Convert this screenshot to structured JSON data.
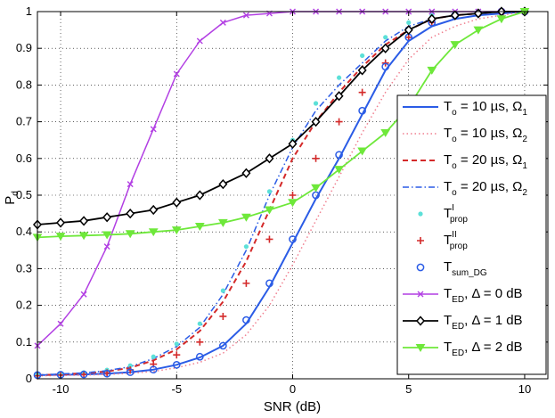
{
  "chart_data": {
    "type": "line",
    "title": "",
    "xlabel": "SNR (dB)",
    "ylabel_main": "P",
    "ylabel_sub": "d",
    "xlim": [
      -11,
      11
    ],
    "ylim": [
      0,
      1
    ],
    "xticks": [
      -10,
      -5,
      0,
      5,
      10
    ],
    "yticks": [
      0,
      0.1,
      0.2,
      0.3,
      0.4,
      0.5,
      0.6,
      0.7,
      0.8,
      0.9,
      1
    ],
    "grid": true,
    "legend_position": "right",
    "series": [
      {
        "name": "T_o = 10 µs, Ω_1",
        "legend": {
          "main": "T",
          "sub": "o",
          "text": " = 10 µs,  Ω",
          "sub2": "1"
        },
        "color": "#2b5ce6",
        "style": "solid",
        "marker": "none",
        "width": 2,
        "x": [
          -11,
          -10,
          -9,
          -8,
          -7,
          -6,
          -5,
          -4,
          -3,
          -2,
          -1,
          0,
          1,
          2,
          3,
          4,
          5,
          6,
          7,
          8,
          9,
          10
        ],
        "y": [
          0.01,
          0.011,
          0.012,
          0.014,
          0.018,
          0.025,
          0.038,
          0.058,
          0.09,
          0.15,
          0.25,
          0.37,
          0.49,
          0.6,
          0.72,
          0.84,
          0.92,
          0.96,
          0.98,
          0.99,
          0.995,
          1.0
        ]
      },
      {
        "name": "T_o = 10 µs, Ω_2",
        "legend": {
          "main": "T",
          "sub": "o",
          "text": " = 10 µs,  Ω",
          "sub2": "2"
        },
        "color": "#f07f8f",
        "style": "dotted",
        "marker": "none",
        "width": 1.5,
        "x": [
          -11,
          -10,
          -9,
          -8,
          -7,
          -6,
          -5,
          -4,
          -3,
          -2,
          -1,
          0,
          1,
          2,
          3,
          4,
          5,
          6,
          7,
          8,
          9,
          10
        ],
        "y": [
          0.008,
          0.009,
          0.01,
          0.012,
          0.015,
          0.02,
          0.03,
          0.045,
          0.07,
          0.12,
          0.2,
          0.31,
          0.43,
          0.55,
          0.67,
          0.78,
          0.87,
          0.93,
          0.96,
          0.98,
          0.99,
          1.0
        ]
      },
      {
        "name": "T_o = 20 µs, Ω_1",
        "legend": {
          "main": "T",
          "sub": "o",
          "text": " = 20 µs,  Ω",
          "sub2": "1"
        },
        "color": "#d42a2a",
        "style": "dashed",
        "marker": "none",
        "width": 2,
        "x": [
          -11,
          -10,
          -9,
          -8,
          -7,
          -6,
          -5,
          -4,
          -3,
          -2,
          -1,
          0,
          1,
          2,
          3,
          4,
          5,
          6,
          7,
          8,
          9,
          10
        ],
        "y": [
          0.01,
          0.012,
          0.015,
          0.02,
          0.03,
          0.05,
          0.08,
          0.13,
          0.21,
          0.32,
          0.46,
          0.6,
          0.7,
          0.78,
          0.85,
          0.91,
          0.95,
          0.98,
          0.99,
          0.995,
          1.0,
          1.0
        ]
      },
      {
        "name": "T_o = 20 µs, Ω_2",
        "legend": {
          "main": "T",
          "sub": "o",
          "text": " = 20 µs,  Ω",
          "sub2": "2"
        },
        "color": "#2b5ce6",
        "style": "dashdot",
        "marker": "none",
        "width": 1.5,
        "x": [
          -11,
          -10,
          -9,
          -8,
          -7,
          -6,
          -5,
          -4,
          -3,
          -2,
          -1,
          0,
          1,
          2,
          3,
          4,
          5,
          6,
          7,
          8,
          9,
          10
        ],
        "y": [
          0.01,
          0.013,
          0.016,
          0.022,
          0.033,
          0.055,
          0.088,
          0.14,
          0.23,
          0.35,
          0.5,
          0.63,
          0.73,
          0.8,
          0.86,
          0.92,
          0.96,
          0.98,
          0.99,
          0.995,
          1.0,
          1.0
        ]
      },
      {
        "name": "T^I_prop",
        "legend": {
          "main": "T",
          "sup": "I",
          "sub": "prop",
          "text": "",
          "sub2": ""
        },
        "color": "#5ce0d8",
        "style": "none",
        "marker": "dot",
        "width": 0,
        "x": [
          -11,
          -10,
          -9,
          -8,
          -7,
          -6,
          -5,
          -4,
          -3,
          -2,
          -1,
          0,
          1,
          2,
          3,
          4,
          5,
          6,
          7,
          8,
          9,
          10
        ],
        "y": [
          0.012,
          0.014,
          0.017,
          0.024,
          0.036,
          0.06,
          0.095,
          0.15,
          0.24,
          0.36,
          0.51,
          0.65,
          0.75,
          0.82,
          0.88,
          0.93,
          0.97,
          0.99,
          0.995,
          1.0,
          1.0,
          1.0
        ]
      },
      {
        "name": "T^II_prop",
        "legend": {
          "main": "T",
          "sup": "II",
          "sub": "prop",
          "text": "",
          "sub2": ""
        },
        "color": "#d42a2a",
        "style": "none",
        "marker": "plus",
        "width": 0,
        "x": [
          -11,
          -10,
          -9,
          -8,
          -7,
          -6,
          -5,
          -4,
          -3,
          -2,
          -1,
          0,
          1,
          2,
          3,
          4,
          5,
          6,
          7,
          8,
          9,
          10
        ],
        "y": [
          0.008,
          0.01,
          0.012,
          0.016,
          0.024,
          0.04,
          0.065,
          0.1,
          0.17,
          0.26,
          0.38,
          0.5,
          0.6,
          0.7,
          0.78,
          0.86,
          0.93,
          0.97,
          0.99,
          0.995,
          1.0,
          1.0
        ]
      },
      {
        "name": "T_sum_DG",
        "legend": {
          "main": "T",
          "sub": "sum_DG",
          "text": "",
          "sub2": ""
        },
        "color": "#2b5ce6",
        "style": "none",
        "marker": "circle",
        "width": 0,
        "x": [
          -11,
          -10,
          -9,
          -8,
          -7,
          -6,
          -5,
          -4,
          -3,
          -2,
          -1,
          0,
          1,
          2,
          3,
          4,
          5,
          6,
          7,
          8,
          9,
          10
        ],
        "y": [
          0.01,
          0.011,
          0.012,
          0.014,
          0.018,
          0.025,
          0.038,
          0.06,
          0.09,
          0.16,
          0.26,
          0.38,
          0.5,
          0.61,
          0.73,
          0.85,
          0.93,
          0.97,
          0.99,
          0.995,
          1.0,
          1.0
        ]
      },
      {
        "name": "T_ED, Δ = 0 dB",
        "legend": {
          "main": "T",
          "sub": "ED",
          "text": ", Δ = 0 dB",
          "sub2": ""
        },
        "color": "#b23fe3",
        "style": "solid",
        "marker": "x",
        "width": 1.5,
        "x": [
          -11,
          -10,
          -9,
          -8,
          -7,
          -6,
          -5,
          -4,
          -3,
          -2,
          -1,
          0,
          1,
          2,
          3,
          4,
          5,
          6,
          7,
          8,
          9,
          10
        ],
        "y": [
          0.09,
          0.15,
          0.23,
          0.36,
          0.53,
          0.68,
          0.83,
          0.92,
          0.97,
          0.99,
          0.995,
          1.0,
          1.0,
          1.0,
          1.0,
          1.0,
          1.0,
          1.0,
          1.0,
          1.0,
          1.0,
          1.0
        ]
      },
      {
        "name": "T_ED, Δ = 1 dB",
        "legend": {
          "main": "T",
          "sub": "ED",
          "text": ", Δ = 1 dB",
          "sub2": ""
        },
        "color": "#000000",
        "style": "solid",
        "marker": "diamond",
        "width": 1.8,
        "x": [
          -11,
          -10,
          -9,
          -8,
          -7,
          -6,
          -5,
          -4,
          -3,
          -2,
          -1,
          0,
          1,
          2,
          3,
          4,
          5,
          6,
          7,
          8,
          9,
          10
        ],
        "y": [
          0.42,
          0.425,
          0.43,
          0.44,
          0.45,
          0.46,
          0.48,
          0.5,
          0.53,
          0.56,
          0.6,
          0.64,
          0.7,
          0.77,
          0.84,
          0.9,
          0.95,
          0.98,
          0.99,
          0.995,
          1.0,
          1.0
        ]
      },
      {
        "name": "T_ED, Δ = 2 dB",
        "legend": {
          "main": "T",
          "sub": "ED",
          "text": ", Δ = 2 dB",
          "sub2": ""
        },
        "color": "#6ee83a",
        "style": "solid",
        "marker": "triangle",
        "width": 1.8,
        "x": [
          -11,
          -10,
          -9,
          -8,
          -7,
          -6,
          -5,
          -4,
          -3,
          -2,
          -1,
          0,
          1,
          2,
          3,
          4,
          5,
          6,
          7,
          8,
          9,
          10
        ],
        "y": [
          0.385,
          0.388,
          0.39,
          0.392,
          0.395,
          0.4,
          0.405,
          0.415,
          0.425,
          0.44,
          0.46,
          0.48,
          0.52,
          0.57,
          0.62,
          0.67,
          0.74,
          0.84,
          0.91,
          0.95,
          0.98,
          1.0
        ]
      }
    ]
  }
}
